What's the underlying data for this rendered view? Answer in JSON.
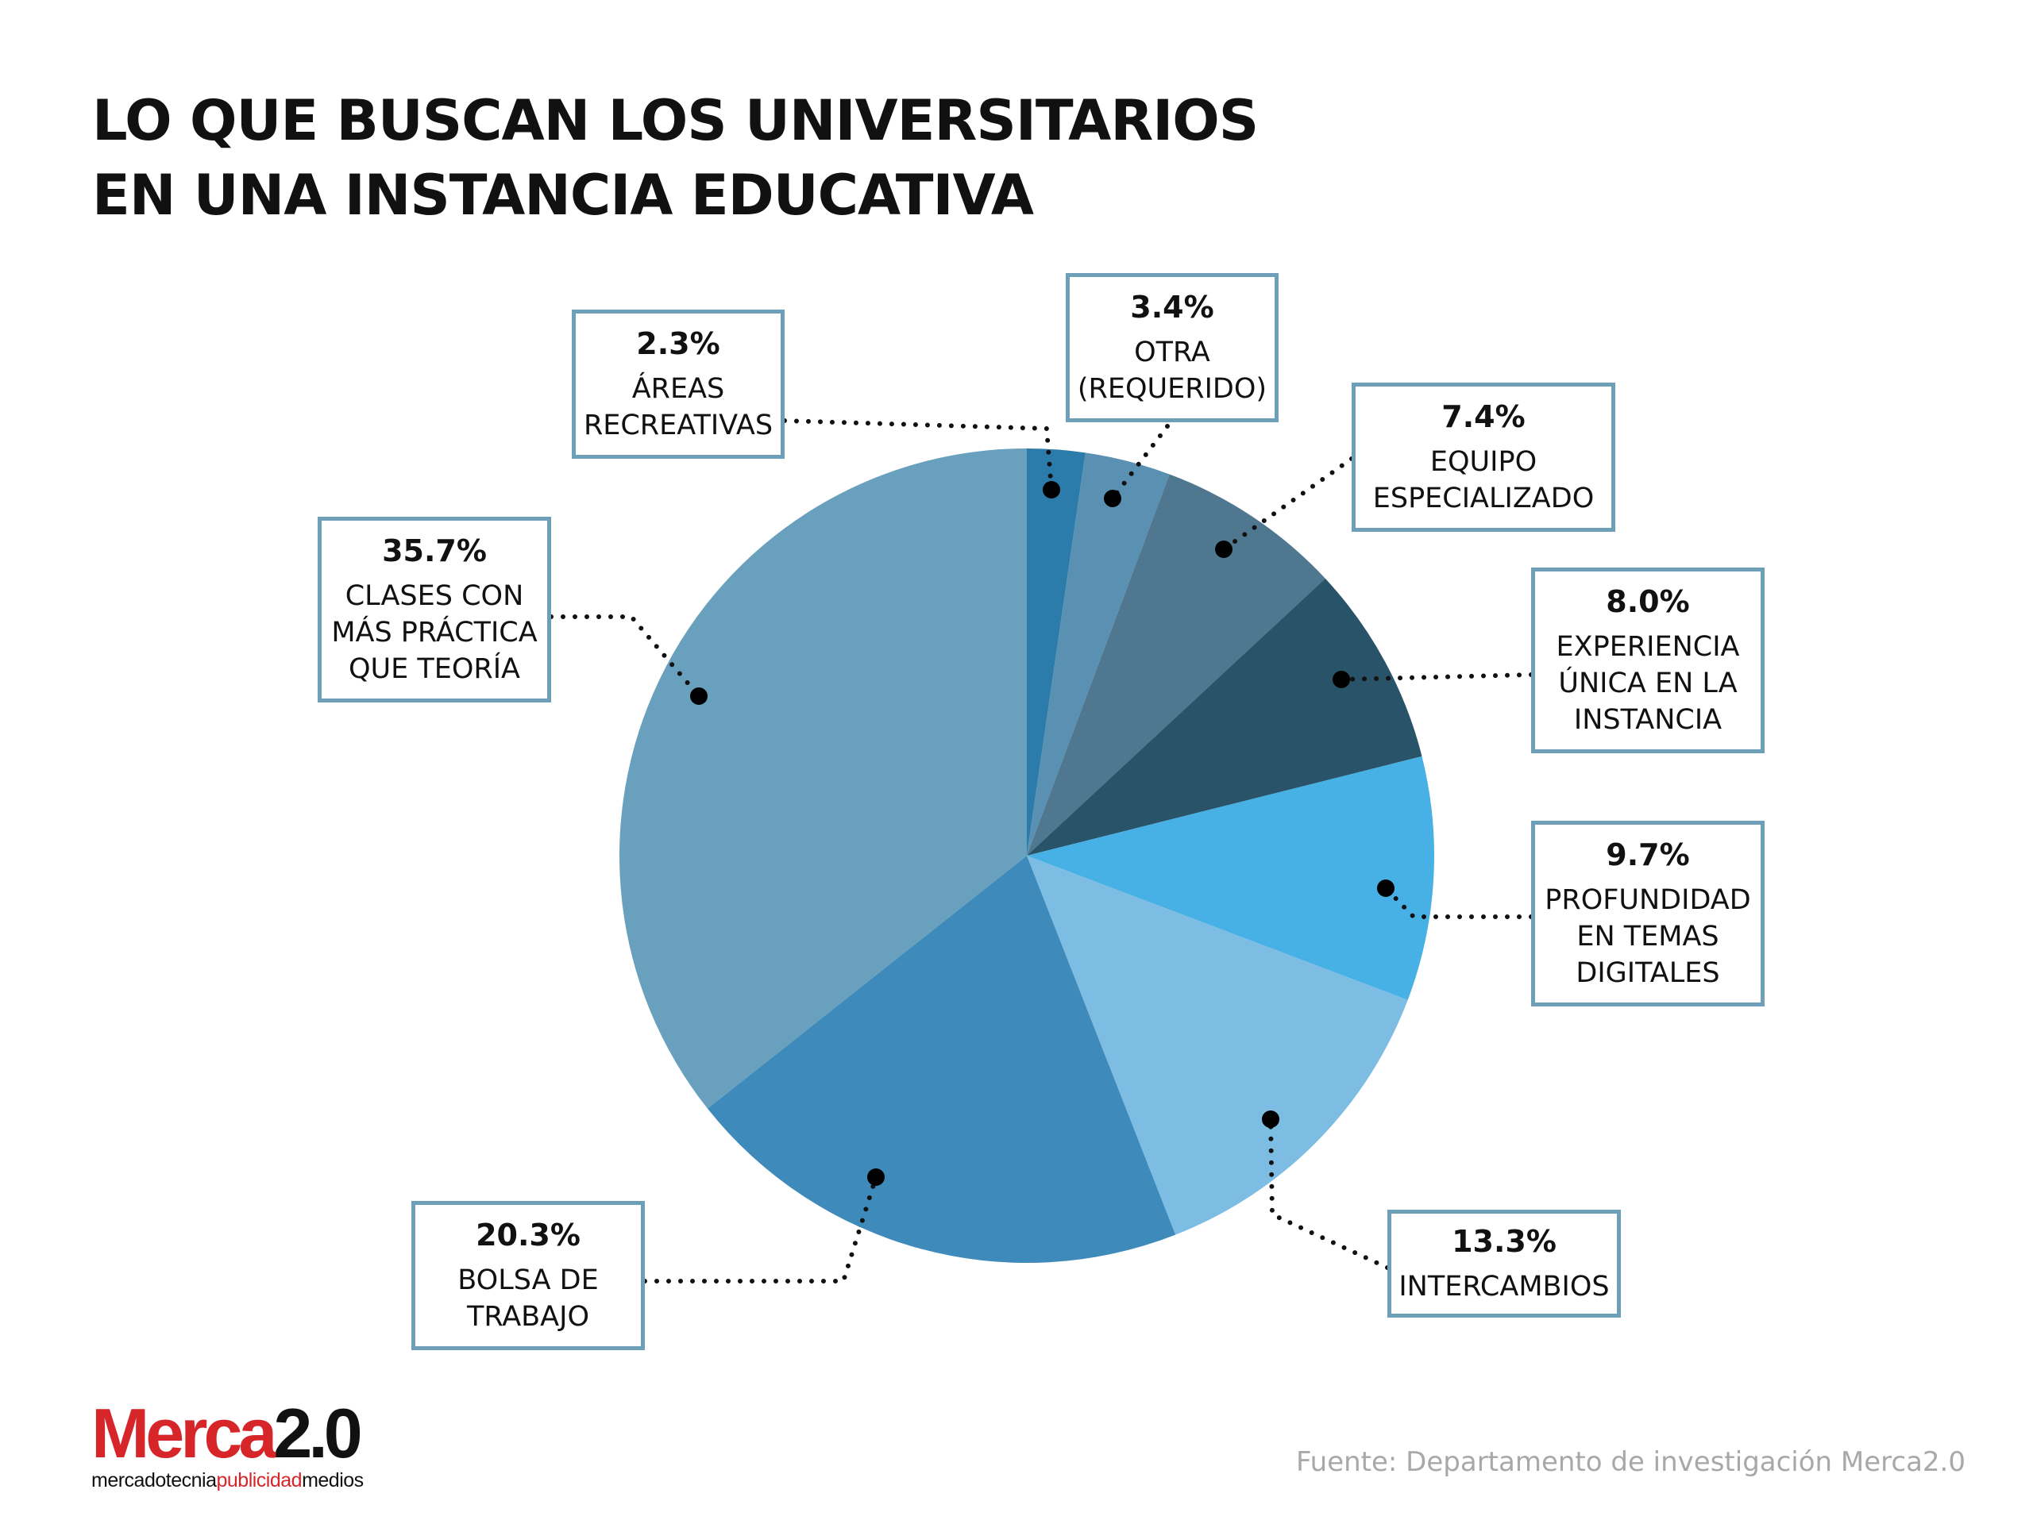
{
  "title_lines": [
    "LO QUE BUSCAN LOS UNIVERSITARIOS",
    "EN UNA INSTANCIA EDUCATIVA"
  ],
  "chart_data": {
    "type": "pie",
    "title": "LO QUE BUSCAN LOS UNIVERSITARIOS EN UNA INSTANCIA EDUCATIVA",
    "slices": [
      {
        "label": "ÁREAS\nRECREATIVAS",
        "value": 2.3,
        "pct_label": "2.3%",
        "color": "#2b7bab"
      },
      {
        "label": "OTRA\n(REQUERIDO)",
        "value": 3.4,
        "pct_label": "3.4%",
        "color": "#5a90b2"
      },
      {
        "label": "EQUIPO\nESPECIALIZADO",
        "value": 7.4,
        "pct_label": "7.4%",
        "color": "#4f7890"
      },
      {
        "label": "EXPERIENCIA\nÚNICA EN LA\nINSTANCIA",
        "value": 8.0,
        "pct_label": "8.0%",
        "color": "#285368"
      },
      {
        "label": "PROFUNDIDAD\nEN TEMAS\nDIGITALES",
        "value": 9.7,
        "pct_label": "9.7%",
        "color": "#47b0e5"
      },
      {
        "label": "INTERCAMBIOS",
        "value": 13.3,
        "pct_label": "13.3%",
        "color": "#7dbde3"
      },
      {
        "label": "BOLSA DE\nTRABAJO",
        "value": 20.3,
        "pct_label": "20.3%",
        "color": "#3e8bbb"
      },
      {
        "label": "CLASES CON\nMÁS PRÁCTICA\nQUE TEORÍA",
        "value": 35.7,
        "pct_label": "35.7%",
        "color": "#68a0bd"
      }
    ],
    "start_angle": "12 o'clock",
    "direction": "clockwise"
  },
  "logo": {
    "main_red": "Merca",
    "main_dark": "2.0",
    "tag_1": "mercadotecnia",
    "tag_2": "publicidad",
    "tag_3": "medios"
  },
  "source": "Fuente: Departamento de investigación Merca2.0"
}
